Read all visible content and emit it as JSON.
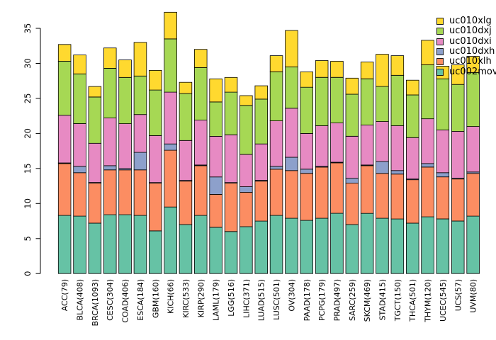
{
  "figure": {
    "background_color": "#ffffff",
    "axis_color": "#000000",
    "bar_border_color": "#000000"
  },
  "chart_data": {
    "type": "bar",
    "stacked": true,
    "title": "",
    "xlabel": "",
    "ylabel": "",
    "ylim": [
      0,
      35
    ],
    "yticks": [
      0,
      5,
      10,
      15,
      20,
      25,
      30,
      35
    ],
    "grid": false,
    "legend_position": "top-right",
    "x_tick_rotation_degrees": 90,
    "categories": [
      "ACC(79)",
      "BLCA(408)",
      "BRCA(1093)",
      "CESC(304)",
      "COAD(406)",
      "ESCA(184)",
      "GBM(160)",
      "KICH(66)",
      "KIRC(533)",
      "KIRP(290)",
      "LAML(179)",
      "LGG(516)",
      "LIHC(371)",
      "LUAD(515)",
      "LUSC(501)",
      "OV(304)",
      "PAAD(178)",
      "PCPG(179)",
      "PRAD(497)",
      "SARC(259)",
      "SKCM(469)",
      "STAD(415)",
      "TGCT(150)",
      "THCA(501)",
      "THYM(120)",
      "UCEC(545)",
      "UCS(57)",
      "UVM(80)"
    ],
    "series": [
      {
        "name": "uc002mov",
        "color": "#66C2A5",
        "values": [
          8.3,
          8.2,
          7.2,
          8.4,
          8.4,
          8.3,
          6.1,
          9.5,
          7.0,
          8.3,
          6.6,
          6.0,
          6.7,
          7.5,
          8.3,
          7.9,
          7.6,
          7.9,
          8.6,
          7.0,
          8.6,
          7.9,
          7.8,
          7.2,
          8.1,
          7.8,
          7.5,
          8.2
        ]
      },
      {
        "name": "uc010xlh",
        "color": "#FC8D62",
        "values": [
          7.4,
          6.2,
          5.7,
          6.4,
          6.4,
          6.5,
          6.8,
          8.1,
          6.2,
          7.1,
          4.7,
          6.9,
          4.9,
          5.7,
          6.6,
          6.8,
          6.7,
          7.3,
          7.2,
          5.9,
          6.8,
          6.4,
          6.4,
          6.2,
          7.1,
          6.0,
          6.0,
          6.1
        ]
      },
      {
        "name": "uc010dxh",
        "color": "#8DA0CB",
        "values": [
          0.1,
          0.9,
          0.1,
          0.6,
          0.2,
          2.5,
          0.1,
          0.9,
          0.1,
          0.1,
          2.5,
          0.1,
          0.8,
          0.1,
          0.4,
          1.9,
          0.6,
          0.1,
          0.1,
          0.7,
          0.1,
          1.7,
          0.5,
          0.1,
          0.5,
          0.6,
          0.1,
          0.2
        ]
      },
      {
        "name": "uc010dxi",
        "color": "#E78AC3",
        "values": [
          6.8,
          6.1,
          5.6,
          6.8,
          6.4,
          5.4,
          6.7,
          7.4,
          5.7,
          6.4,
          5.8,
          6.8,
          4.6,
          5.2,
          6.5,
          7.0,
          5.1,
          5.8,
          5.6,
          6.0,
          5.7,
          5.7,
          6.4,
          5.9,
          6.4,
          6.1,
          6.7,
          6.5
        ]
      },
      {
        "name": "uc010dxj",
        "color": "#A6D854",
        "values": [
          7.7,
          7.1,
          6.6,
          7.1,
          6.6,
          5.5,
          6.5,
          7.6,
          6.7,
          7.5,
          4.9,
          6.1,
          7.0,
          6.4,
          7.0,
          5.9,
          6.6,
          6.9,
          6.5,
          6.0,
          6.6,
          5.0,
          7.2,
          6.1,
          7.7,
          7.3,
          6.7,
          7.7
        ]
      },
      {
        "name": "uc010xlg",
        "color": "#FFD92F",
        "values": [
          2.4,
          2.7,
          1.5,
          2.9,
          2.5,
          4.8,
          2.8,
          3.8,
          1.6,
          2.6,
          3.3,
          2.1,
          1.4,
          1.9,
          2.3,
          5.2,
          2.2,
          2.4,
          2.3,
          2.3,
          2.4,
          4.6,
          2.8,
          2.1,
          3.5,
          1.8,
          2.8,
          2.3
        ]
      }
    ],
    "legend": [
      {
        "label": "uc010xlg",
        "color": "#FFD92F"
      },
      {
        "label": "uc010dxj",
        "color": "#A6D854"
      },
      {
        "label": "uc010dxi",
        "color": "#E78AC3"
      },
      {
        "label": "uc010dxh",
        "color": "#8DA0CB"
      },
      {
        "label": "uc010xlh",
        "color": "#FC8D62"
      },
      {
        "label": "uc002mov",
        "color": "#66C2A5"
      }
    ]
  }
}
